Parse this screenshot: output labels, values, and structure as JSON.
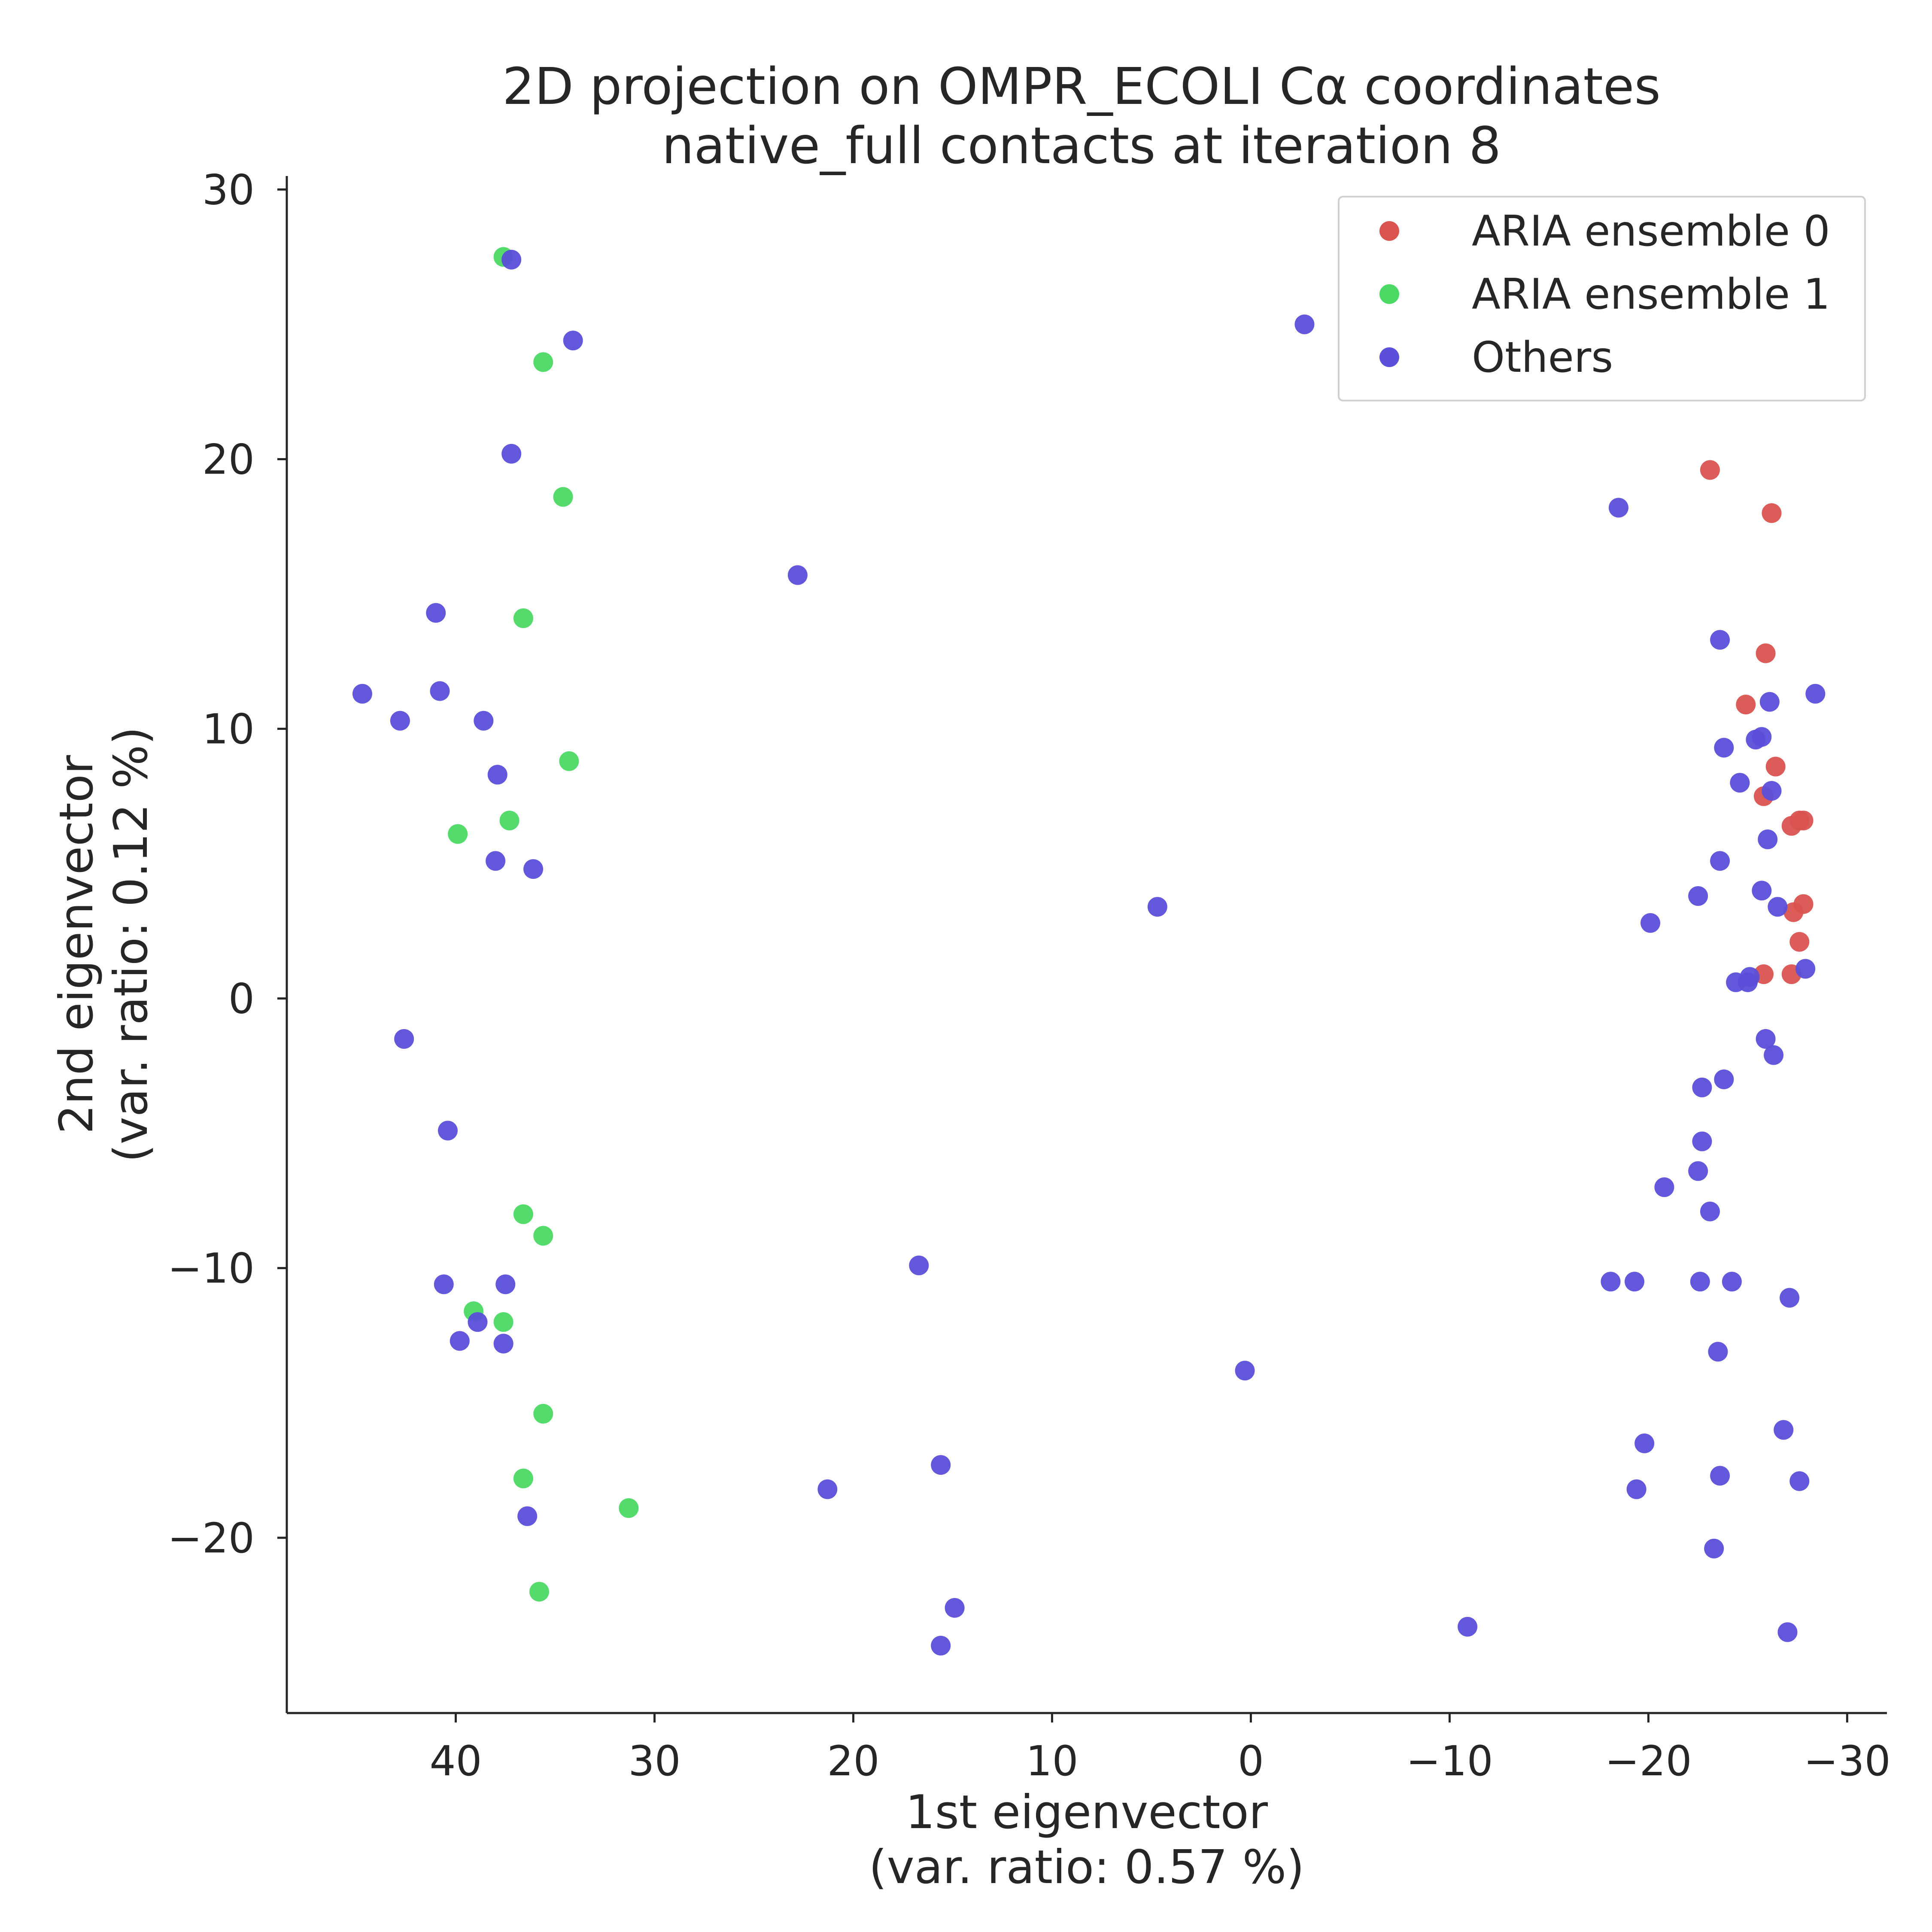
{
  "chart_data": {
    "type": "scatter",
    "title": [
      "2D projection on OMPR_ECOLI Cα coordinates",
      "native_full contacts at iteration 8"
    ],
    "xlabel": [
      "1st eigenvector",
      "(var. ratio: 0.57 %)"
    ],
    "ylabel": [
      "2nd eigenvector",
      "(var. ratio: 0.12 %)"
    ],
    "xlim": [
      48.5,
      -32
    ],
    "ylim": [
      -26.5,
      30.5
    ],
    "x_inverted": true,
    "xticks": [
      40,
      30,
      20,
      10,
      0,
      -10,
      -20,
      -30
    ],
    "xtick_labels": [
      "40",
      "30",
      "20",
      "10",
      "0",
      "−10",
      "−20",
      "−30"
    ],
    "yticks": [
      30,
      20,
      10,
      0,
      -10,
      -20
    ],
    "ytick_labels": [
      "30",
      "20",
      "10",
      "0",
      "−10",
      "−20"
    ],
    "grid": false,
    "legend_position": "top-right",
    "series": [
      {
        "name": "ARIA ensemble 0",
        "color": "#d9534f",
        "points": [
          [
            -23.1,
            19.6
          ],
          [
            -26.2,
            18.0
          ],
          [
            -25.9,
            12.8
          ],
          [
            -24.9,
            10.9
          ],
          [
            -26.4,
            8.6
          ],
          [
            -25.8,
            7.5
          ],
          [
            -27.2,
            6.4
          ],
          [
            -27.6,
            6.6
          ],
          [
            -27.8,
            6.6
          ],
          [
            -27.8,
            3.5
          ],
          [
            -27.3,
            3.2
          ],
          [
            -27.6,
            2.1
          ],
          [
            -25.8,
            0.9
          ],
          [
            -27.2,
            0.9
          ]
        ]
      },
      {
        "name": "ARIA ensemble 1",
        "color": "#4cd964",
        "points": [
          [
            37.6,
            27.5
          ],
          [
            35.6,
            23.6
          ],
          [
            34.6,
            18.6
          ],
          [
            36.6,
            14.1
          ],
          [
            34.3,
            8.8
          ],
          [
            39.9,
            6.1
          ],
          [
            37.3,
            6.6
          ],
          [
            36.6,
            -8.0
          ],
          [
            35.6,
            -8.8
          ],
          [
            39.1,
            -11.6
          ],
          [
            37.6,
            -12.0
          ],
          [
            35.6,
            -15.4
          ],
          [
            36.6,
            -17.8
          ],
          [
            31.3,
            -18.9
          ],
          [
            35.8,
            -22.0
          ]
        ]
      },
      {
        "name": "Others",
        "color": "#5b4fd9",
        "points": [
          [
            37.2,
            27.4
          ],
          [
            34.1,
            24.4
          ],
          [
            37.2,
            20.2
          ],
          [
            22.8,
            15.7
          ],
          [
            41.0,
            14.3
          ],
          [
            40.8,
            11.4
          ],
          [
            44.7,
            11.3
          ],
          [
            42.8,
            10.3
          ],
          [
            38.6,
            10.3
          ],
          [
            37.9,
            8.3
          ],
          [
            38.0,
            5.1
          ],
          [
            36.1,
            4.8
          ],
          [
            -2.7,
            25.0
          ],
          [
            -18.5,
            18.2
          ],
          [
            4.7,
            3.4
          ],
          [
            42.6,
            -1.5
          ],
          [
            40.4,
            -4.9
          ],
          [
            40.6,
            -10.6
          ],
          [
            37.5,
            -10.6
          ],
          [
            39.8,
            -12.7
          ],
          [
            38.9,
            -12.0
          ],
          [
            37.6,
            -12.8
          ],
          [
            36.4,
            -19.2
          ],
          [
            21.3,
            -18.2
          ],
          [
            15.6,
            -17.3
          ],
          [
            16.7,
            -9.9
          ],
          [
            0.3,
            -13.8
          ],
          [
            14.9,
            -22.6
          ],
          [
            15.6,
            -24.0
          ],
          [
            -10.9,
            -23.3
          ],
          [
            -23.6,
            13.3
          ],
          [
            -26.1,
            11.0
          ],
          [
            -28.4,
            11.3
          ],
          [
            -23.8,
            9.3
          ],
          [
            -25.4,
            9.6
          ],
          [
            -25.7,
            9.7
          ],
          [
            -24.6,
            8.0
          ],
          [
            -26.2,
            7.7
          ],
          [
            -26.0,
            5.9
          ],
          [
            -23.6,
            5.1
          ],
          [
            -25.7,
            4.0
          ],
          [
            -22.5,
            3.8
          ],
          [
            -26.5,
            3.4
          ],
          [
            -20.1,
            2.8
          ],
          [
            -24.4,
            0.6
          ],
          [
            -25.0,
            0.6
          ],
          [
            -25.1,
            0.8
          ],
          [
            -27.9,
            1.1
          ],
          [
            -25.9,
            -1.5
          ],
          [
            -26.3,
            -2.1
          ],
          [
            -23.8,
            -3.0
          ],
          [
            -22.7,
            -3.3
          ],
          [
            -22.7,
            -5.3
          ],
          [
            -22.5,
            -6.4
          ],
          [
            -20.8,
            -7.0
          ],
          [
            -23.1,
            -7.9
          ],
          [
            -18.1,
            -10.5
          ],
          [
            -19.3,
            -10.5
          ],
          [
            -22.6,
            -10.5
          ],
          [
            -24.2,
            -10.5
          ],
          [
            -23.5,
            -13.1
          ],
          [
            -27.1,
            -11.1
          ],
          [
            -19.8,
            -16.5
          ],
          [
            -26.8,
            -16.0
          ],
          [
            -19.4,
            -18.2
          ],
          [
            -23.6,
            -17.7
          ],
          [
            -27.6,
            -17.9
          ],
          [
            -23.3,
            -20.4
          ],
          [
            -27.0,
            -23.5
          ]
        ]
      }
    ]
  }
}
